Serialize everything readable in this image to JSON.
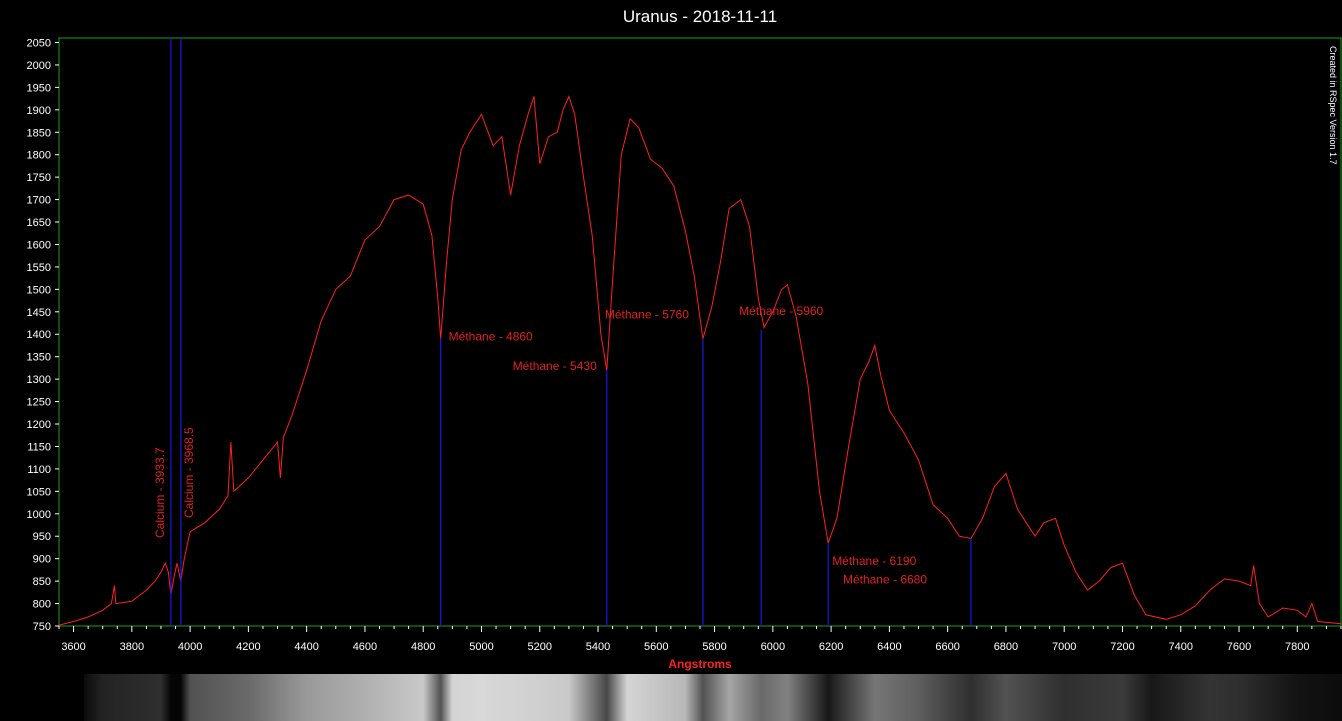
{
  "chart_data": {
    "type": "line",
    "title": "Uranus - 2018-11-11",
    "xlabel": "Angstroms",
    "ylabel": "",
    "credit": "Created in RSpec Version 1.7",
    "xlim": [
      3550,
      7950
    ],
    "ylim": [
      750,
      2060
    ],
    "x_ticks": [
      3600,
      3800,
      4000,
      4200,
      4400,
      4600,
      4800,
      5000,
      5200,
      5400,
      5600,
      5800,
      6000,
      6200,
      6400,
      6600,
      6800,
      7000,
      7200,
      7400,
      7600,
      7800
    ],
    "y_ticks": [
      750,
      800,
      850,
      900,
      950,
      1000,
      1050,
      1100,
      1150,
      1200,
      1250,
      1300,
      1350,
      1400,
      1450,
      1500,
      1550,
      1600,
      1650,
      1700,
      1750,
      1800,
      1850,
      1900,
      1950,
      2000,
      2050
    ],
    "series": [
      {
        "color": "#ff2020",
        "points": [
          [
            3550,
            752
          ],
          [
            3600,
            760
          ],
          [
            3650,
            770
          ],
          [
            3700,
            785
          ],
          [
            3730,
            800
          ],
          [
            3740,
            840
          ],
          [
            3745,
            800
          ],
          [
            3800,
            805
          ],
          [
            3850,
            830
          ],
          [
            3880,
            850
          ],
          [
            3900,
            870
          ],
          [
            3915,
            890
          ],
          [
            3925,
            870
          ],
          [
            3934,
            820
          ],
          [
            3945,
            860
          ],
          [
            3955,
            890
          ],
          [
            3968,
            850
          ],
          [
            3980,
            900
          ],
          [
            4000,
            960
          ],
          [
            4050,
            980
          ],
          [
            4100,
            1010
          ],
          [
            4130,
            1040
          ],
          [
            4140,
            1160
          ],
          [
            4150,
            1050
          ],
          [
            4200,
            1080
          ],
          [
            4250,
            1120
          ],
          [
            4300,
            1160
          ],
          [
            4310,
            1080
          ],
          [
            4320,
            1170
          ],
          [
            4350,
            1220
          ],
          [
            4400,
            1320
          ],
          [
            4450,
            1430
          ],
          [
            4500,
            1500
          ],
          [
            4550,
            1530
          ],
          [
            4600,
            1610
          ],
          [
            4650,
            1640
          ],
          [
            4700,
            1700
          ],
          [
            4750,
            1710
          ],
          [
            4800,
            1690
          ],
          [
            4830,
            1620
          ],
          [
            4850,
            1480
          ],
          [
            4860,
            1390
          ],
          [
            4880,
            1560
          ],
          [
            4900,
            1700
          ],
          [
            4930,
            1810
          ],
          [
            4960,
            1850
          ],
          [
            5000,
            1890
          ],
          [
            5040,
            1820
          ],
          [
            5070,
            1840
          ],
          [
            5100,
            1710
          ],
          [
            5130,
            1820
          ],
          [
            5160,
            1890
          ],
          [
            5180,
            1930
          ],
          [
            5200,
            1780
          ],
          [
            5230,
            1840
          ],
          [
            5260,
            1850
          ],
          [
            5280,
            1900
          ],
          [
            5300,
            1930
          ],
          [
            5320,
            1890
          ],
          [
            5350,
            1750
          ],
          [
            5380,
            1620
          ],
          [
            5410,
            1400
          ],
          [
            5430,
            1320
          ],
          [
            5450,
            1520
          ],
          [
            5480,
            1800
          ],
          [
            5510,
            1880
          ],
          [
            5540,
            1860
          ],
          [
            5580,
            1790
          ],
          [
            5620,
            1770
          ],
          [
            5660,
            1730
          ],
          [
            5700,
            1630
          ],
          [
            5730,
            1530
          ],
          [
            5760,
            1390
          ],
          [
            5790,
            1460
          ],
          [
            5820,
            1560
          ],
          [
            5850,
            1680
          ],
          [
            5890,
            1700
          ],
          [
            5920,
            1640
          ],
          [
            5950,
            1480
          ],
          [
            5970,
            1415
          ],
          [
            6000,
            1450
          ],
          [
            6030,
            1500
          ],
          [
            6050,
            1510
          ],
          [
            6080,
            1440
          ],
          [
            6120,
            1290
          ],
          [
            6160,
            1050
          ],
          [
            6190,
            935
          ],
          [
            6220,
            990
          ],
          [
            6260,
            1150
          ],
          [
            6300,
            1300
          ],
          [
            6330,
            1340
          ],
          [
            6350,
            1375
          ],
          [
            6370,
            1310
          ],
          [
            6400,
            1230
          ],
          [
            6450,
            1180
          ],
          [
            6500,
            1120
          ],
          [
            6550,
            1020
          ],
          [
            6600,
            990
          ],
          [
            6640,
            950
          ],
          [
            6680,
            945
          ],
          [
            6720,
            990
          ],
          [
            6760,
            1060
          ],
          [
            6800,
            1090
          ],
          [
            6840,
            1010
          ],
          [
            6880,
            970
          ],
          [
            6900,
            950
          ],
          [
            6930,
            980
          ],
          [
            6970,
            990
          ],
          [
            7000,
            930
          ],
          [
            7040,
            870
          ],
          [
            7080,
            830
          ],
          [
            7120,
            850
          ],
          [
            7160,
            880
          ],
          [
            7200,
            890
          ],
          [
            7240,
            820
          ],
          [
            7280,
            775
          ],
          [
            7350,
            765
          ],
          [
            7400,
            775
          ],
          [
            7450,
            795
          ],
          [
            7500,
            830
          ],
          [
            7550,
            855
          ],
          [
            7600,
            850
          ],
          [
            7640,
            840
          ],
          [
            7650,
            885
          ],
          [
            7670,
            800
          ],
          [
            7700,
            770
          ],
          [
            7750,
            790
          ],
          [
            7800,
            785
          ],
          [
            7830,
            770
          ],
          [
            7850,
            800
          ],
          [
            7870,
            760
          ],
          [
            7950,
            755
          ]
        ]
      }
    ],
    "annotations": [
      {
        "label": "Calcium - 3933.7",
        "x": 3934,
        "rotate": true
      },
      {
        "label": "Calcium - 3968.5",
        "x": 3968.5,
        "rotate": true
      },
      {
        "label": "Méthane - 4860",
        "x": 4860,
        "y_top": 1390
      },
      {
        "label": "Méthane - 5430",
        "x": 5430,
        "y_top": 1320
      },
      {
        "label": "Méthane - 5760",
        "x": 5760,
        "y_top": 1390
      },
      {
        "label": "Méthane - 5960",
        "x": 5960,
        "y_top": 1410
      },
      {
        "label": "Méthane - 6190",
        "x": 6190,
        "y_top": 935
      },
      {
        "label": "Méthane - 6680",
        "x": 6680,
        "y_top": 945
      }
    ],
    "spectrum_strip": {
      "bands": [
        [
          3550,
          0.05
        ],
        [
          3700,
          0.15
        ],
        [
          3900,
          0.2
        ],
        [
          3934,
          0.02
        ],
        [
          3968,
          0.02
        ],
        [
          4000,
          0.35
        ],
        [
          4200,
          0.45
        ],
        [
          4400,
          0.65
        ],
        [
          4600,
          0.75
        ],
        [
          4800,
          0.85
        ],
        [
          4860,
          0.35
        ],
        [
          4900,
          0.9
        ],
        [
          5000,
          0.92
        ],
        [
          5200,
          0.88
        ],
        [
          5300,
          0.85
        ],
        [
          5430,
          0.3
        ],
        [
          5500,
          0.9
        ],
        [
          5700,
          0.78
        ],
        [
          5760,
          0.35
        ],
        [
          5850,
          0.7
        ],
        [
          5960,
          0.45
        ],
        [
          6050,
          0.55
        ],
        [
          6190,
          0.1
        ],
        [
          6350,
          0.5
        ],
        [
          6500,
          0.4
        ],
        [
          6680,
          0.2
        ],
        [
          6800,
          0.35
        ],
        [
          7000,
          0.2
        ],
        [
          7200,
          0.25
        ],
        [
          7300,
          0.1
        ],
        [
          7500,
          0.22
        ],
        [
          7600,
          0.2
        ],
        [
          7800,
          0.08
        ],
        [
          7950,
          0.05
        ]
      ]
    }
  }
}
